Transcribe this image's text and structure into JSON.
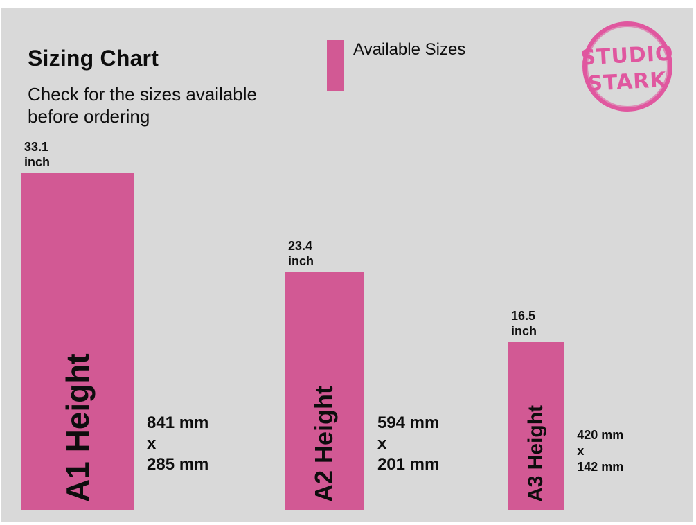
{
  "chart_data": {
    "type": "bar",
    "title": "Sizing Chart",
    "subtitle": "Check for the sizes available before ordering",
    "legend": {
      "position": "top",
      "entries": [
        "Available Sizes"
      ]
    },
    "categories": [
      "A1 Height",
      "A2 Height",
      "A3 Height"
    ],
    "series": [
      {
        "name": "Available Sizes",
        "values": [
          33.1,
          23.4,
          16.5
        ],
        "unit": "inch"
      }
    ],
    "value_labels": [
      [
        "33.1",
        "inch"
      ],
      [
        "23.4",
        "inch"
      ],
      [
        "16.5",
        "inch"
      ]
    ],
    "dimension_labels": [
      [
        "841 mm",
        "x",
        "285 mm"
      ],
      [
        "594 mm",
        "x",
        "201 mm"
      ],
      [
        "420 mm",
        "x",
        "142 mm"
      ]
    ],
    "widths_mm": [
      285,
      201,
      142
    ],
    "heights_mm": [
      841,
      594,
      420
    ],
    "ylim": [
      0,
      33.1
    ],
    "grid": false,
    "colors": {
      "bar": "#d25994",
      "background": "#d9d9d9"
    }
  },
  "logo": {
    "text_line1": "STUDIO",
    "text_line2": "STARK",
    "color": "#e0579f"
  }
}
